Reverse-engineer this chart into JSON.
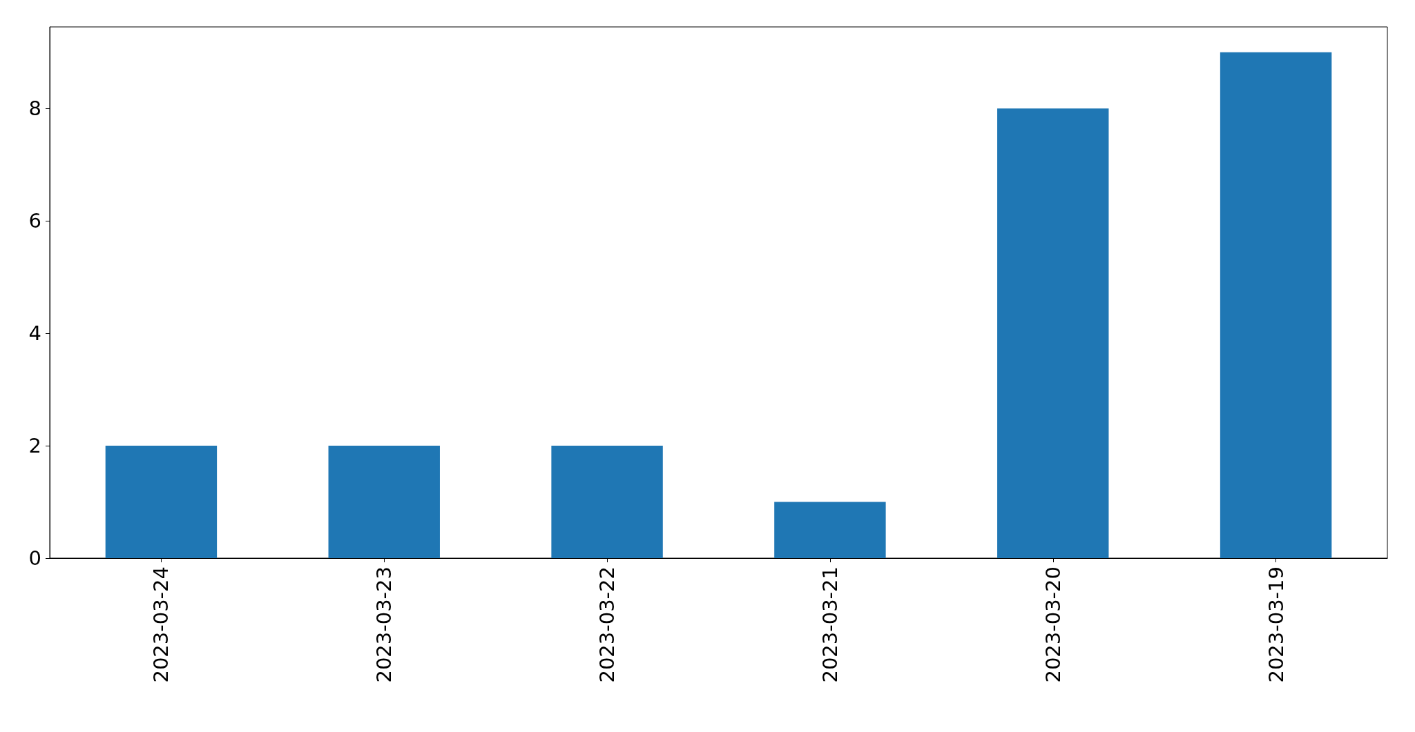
{
  "chart_data": {
    "type": "bar",
    "categories": [
      "2023-03-24",
      "2023-03-23",
      "2023-03-22",
      "2023-03-21",
      "2023-03-20",
      "2023-03-19"
    ],
    "values": [
      2,
      2,
      2,
      1,
      8,
      9
    ],
    "color": "#1f77b4",
    "ylim": [
      0,
      9.45
    ],
    "yticks": [
      0,
      2,
      4,
      6,
      8
    ],
    "grid": false
  }
}
